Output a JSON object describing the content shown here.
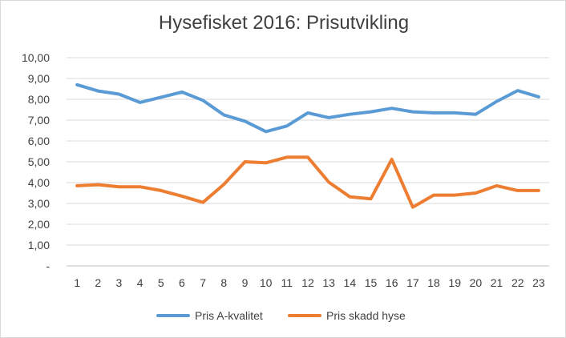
{
  "chart_data": {
    "type": "line",
    "title": "Hysefisket 2016: Prisutvikling",
    "xlabel": "",
    "ylabel": "",
    "categories": [
      "1",
      "2",
      "3",
      "4",
      "5",
      "6",
      "7",
      "8",
      "9",
      "10",
      "11",
      "12",
      "13",
      "14",
      "15",
      "16",
      "17",
      "18",
      "19",
      "20",
      "21",
      "22",
      "23"
    ],
    "ylim": [
      0,
      10
    ],
    "y_ticks": [
      "-",
      "1,00",
      "2,00",
      "3,00",
      "4,00",
      "5,00",
      "6,00",
      "7,00",
      "8,00",
      "9,00",
      "10,00"
    ],
    "grid": true,
    "legend_position": "bottom",
    "series": [
      {
        "name": "Pris A-kvalitet",
        "color": "#5b9bd5",
        "values": [
          8.7,
          8.4,
          8.25,
          7.85,
          8.1,
          8.35,
          7.95,
          7.25,
          6.95,
          6.45,
          6.72,
          7.35,
          7.12,
          7.28,
          7.4,
          7.57,
          7.4,
          7.35,
          7.35,
          7.28,
          7.9,
          8.42,
          8.12
        ]
      },
      {
        "name": "Pris skadd hyse",
        "color": "#ed7d31",
        "values": [
          3.85,
          3.9,
          3.8,
          3.8,
          3.62,
          3.35,
          3.05,
          3.92,
          5.0,
          4.95,
          5.22,
          5.22,
          4.02,
          3.32,
          3.22,
          5.12,
          2.82,
          3.4,
          3.4,
          3.5,
          3.85,
          3.62,
          3.62
        ]
      }
    ]
  }
}
